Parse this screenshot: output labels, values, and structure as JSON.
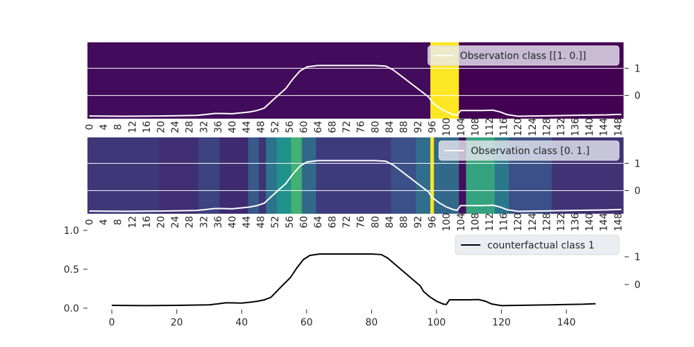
{
  "chart_data": [
    {
      "type": "heatmap",
      "legend": "Observation class [[1. 0.]]",
      "legend_position": "top-right",
      "line_color": "#ffffff",
      "colormap": "viridis",
      "x_ticks": [
        "0",
        "4",
        "8",
        "12",
        "16",
        "20",
        "24",
        "28",
        "32",
        "36",
        "40",
        "44",
        "48",
        "52",
        "56",
        "60",
        "64",
        "68",
        "72",
        "76",
        "80",
        "84",
        "88",
        "92",
        "96",
        "100",
        "104",
        "108",
        "112",
        "116",
        "120",
        "124",
        "128",
        "132",
        "136",
        "140",
        "144",
        "148"
      ],
      "right_ticks": [
        "1",
        "0"
      ],
      "right_tick_values": [
        1,
        0
      ],
      "ylim": [
        -0.85,
        1.95
      ],
      "heat_segments": [
        {
          "from": 0,
          "to": 96,
          "value": 0.03
        },
        {
          "from": 96,
          "to": 104,
          "value": 1.0
        },
        {
          "from": 104,
          "to": 150,
          "value": 0.0
        }
      ]
    },
    {
      "type": "heatmap",
      "legend": "Observation class [0. 1.]",
      "legend_position": "top-right",
      "line_color": "#ffffff",
      "colormap": "viridis",
      "x_ticks": [
        "0",
        "4",
        "8",
        "12",
        "16",
        "20",
        "24",
        "28",
        "32",
        "36",
        "40",
        "44",
        "48",
        "52",
        "56",
        "60",
        "64",
        "68",
        "72",
        "76",
        "80",
        "84",
        "88",
        "92",
        "96",
        "100",
        "104",
        "108",
        "112",
        "116",
        "120",
        "124",
        "128",
        "132",
        "136",
        "140",
        "144",
        "148"
      ],
      "right_ticks": [
        "1",
        "0"
      ],
      "right_tick_values": [
        1,
        0
      ],
      "ylim": [
        -0.85,
        1.95
      ],
      "heat_segments": [
        {
          "from": 0,
          "to": 20,
          "value": 0.17
        },
        {
          "from": 20,
          "to": 31,
          "value": 0.14
        },
        {
          "from": 31,
          "to": 37,
          "value": 0.2
        },
        {
          "from": 37,
          "to": 45,
          "value": 0.13
        },
        {
          "from": 45,
          "to": 48,
          "value": 0.28
        },
        {
          "from": 48,
          "to": 50,
          "value": 0.16
        },
        {
          "from": 50,
          "to": 53,
          "value": 0.38
        },
        {
          "from": 53,
          "to": 57,
          "value": 0.5
        },
        {
          "from": 57,
          "to": 60,
          "value": 0.64
        },
        {
          "from": 60,
          "to": 64,
          "value": 0.34
        },
        {
          "from": 64,
          "to": 85,
          "value": 0.18
        },
        {
          "from": 85,
          "to": 92,
          "value": 0.24
        },
        {
          "from": 92,
          "to": 96,
          "value": 0.36
        },
        {
          "from": 96,
          "to": 97,
          "value": 1.0
        },
        {
          "from": 97,
          "to": 104,
          "value": 0.34
        },
        {
          "from": 104,
          "to": 106,
          "value": 0.04
        },
        {
          "from": 106,
          "to": 114,
          "value": 0.58
        },
        {
          "from": 114,
          "to": 118,
          "value": 0.4
        },
        {
          "from": 118,
          "to": 130,
          "value": 0.24
        },
        {
          "from": 130,
          "to": 150,
          "value": 0.15
        }
      ]
    },
    {
      "type": "line",
      "legend": "counterfactual class 1",
      "legend_position": "top-right",
      "line_color": "#000000",
      "x_ticks": [
        "0",
        "20",
        "40",
        "60",
        "80",
        "100",
        "120",
        "140"
      ],
      "x_tick_values": [
        0,
        20,
        40,
        60,
        80,
        100,
        120,
        140
      ],
      "left_ticks": [
        "0.0",
        "0.5",
        "1.0"
      ],
      "left_tick_values": [
        0.0,
        0.5,
        1.0
      ],
      "right_ticks": [
        "1",
        "0"
      ],
      "right_tick_values": [
        1,
        0
      ],
      "xlim": [
        -7.5,
        157.5
      ],
      "ylim": [
        -0.85,
        1.95
      ],
      "x": [
        0,
        10,
        20,
        30,
        33,
        35,
        37,
        40,
        43,
        45,
        47,
        49,
        52,
        55,
        57,
        59,
        61,
        64,
        70,
        75,
        80,
        83,
        85,
        87,
        90,
        92,
        95,
        96,
        98,
        100,
        102,
        103,
        104,
        106,
        108,
        110,
        113,
        115,
        117,
        120,
        125,
        130,
        135,
        140,
        145,
        149
      ],
      "y": [
        -0.75,
        -0.76,
        -0.75,
        -0.73,
        -0.69,
        -0.66,
        -0.66,
        -0.67,
        -0.63,
        -0.6,
        -0.55,
        -0.46,
        -0.1,
        0.25,
        0.6,
        0.9,
        1.05,
        1.1,
        1.1,
        1.1,
        1.1,
        1.08,
        0.95,
        0.75,
        0.45,
        0.25,
        -0.05,
        -0.25,
        -0.45,
        -0.6,
        -0.7,
        -0.72,
        -0.55,
        -0.55,
        -0.55,
        -0.55,
        -0.54,
        -0.6,
        -0.7,
        -0.76,
        -0.75,
        -0.74,
        -0.73,
        -0.72,
        -0.71,
        -0.69
      ]
    }
  ]
}
